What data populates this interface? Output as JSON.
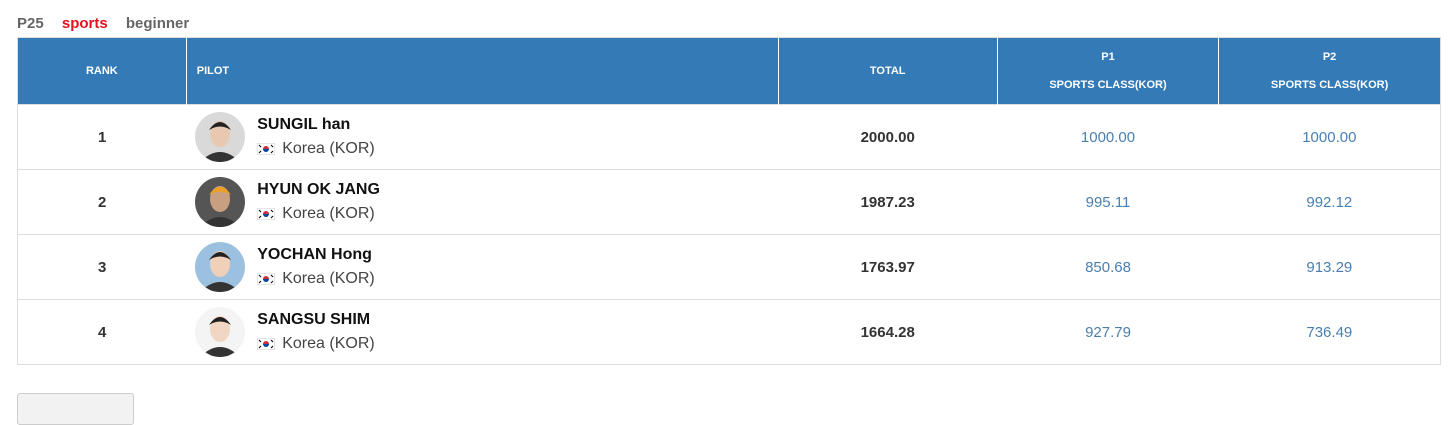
{
  "header": {
    "class": "P25",
    "category": "sports",
    "level": "beginner"
  },
  "table": {
    "columns": {
      "rank": "RANK",
      "pilot": "PILOT",
      "total": "TOTAL",
      "p1": {
        "title": "P1",
        "subtitle": "SPORTS CLASS(KOR)"
      },
      "p2": {
        "title": "P2",
        "subtitle": "SPORTS CLASS(KOR)"
      }
    },
    "rows": [
      {
        "rank": 1,
        "name": "SUNGIL han",
        "country": "Korea (KOR)",
        "total": "2000.00",
        "p1": "1000.00",
        "p2": "1000.00"
      },
      {
        "rank": 2,
        "name": "HYUN OK JANG",
        "country": "Korea (KOR)",
        "total": "1987.23",
        "p1": "995.11",
        "p2": "992.12"
      },
      {
        "rank": 3,
        "name": "YOCHAN Hong",
        "country": "Korea (KOR)",
        "total": "1763.97",
        "p1": "850.68",
        "p2": "913.29"
      },
      {
        "rank": 4,
        "name": "SANGSU SHIM",
        "country": "Korea (KOR)",
        "total": "1664.28",
        "p1": "927.79",
        "p2": "736.49"
      }
    ]
  }
}
